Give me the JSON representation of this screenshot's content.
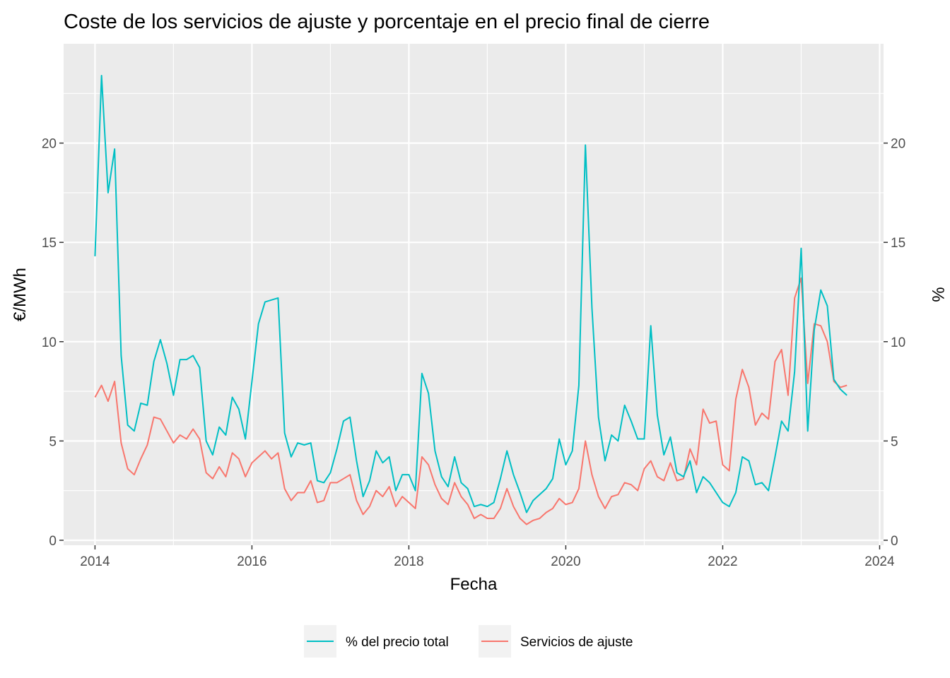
{
  "chart_data": {
    "type": "line",
    "title": "Coste de los servicios de ajuste y porcentaje en el precio final de cierre",
    "xlabel": "Fecha",
    "ylabel": "€/MWh",
    "ylabel_right": "%",
    "xlim": [
      2013.6,
      2024.05
    ],
    "ylim": [
      -0.25,
      25
    ],
    "x_ticks": [
      2014,
      2016,
      2018,
      2020,
      2022,
      2024
    ],
    "y_ticks": [
      0,
      5,
      10,
      15,
      20
    ],
    "x_tick_labels": [
      "2014",
      "2016",
      "2018",
      "2020",
      "2022",
      "2024"
    ],
    "y_tick_labels": [
      "0",
      "5",
      "10",
      "15",
      "20"
    ],
    "y_right_tick_labels": [
      "0",
      "5",
      "10",
      "15",
      "20"
    ],
    "grid": true,
    "legend": "bottom",
    "x_start": 2014.0,
    "x_step_months": 1,
    "series": [
      {
        "name": "% del precio total",
        "color": "#00BFC4",
        "values": [
          14.3,
          23.4,
          17.5,
          19.7,
          9.3,
          5.8,
          5.5,
          6.9,
          6.8,
          9.0,
          10.1,
          8.9,
          7.3,
          9.1,
          9.1,
          9.3,
          8.7,
          5.0,
          4.3,
          5.7,
          5.3,
          7.2,
          6.6,
          5.1,
          8.0,
          10.9,
          12.0,
          12.1,
          12.2,
          5.4,
          4.2,
          4.9,
          4.8,
          4.9,
          3.0,
          2.9,
          3.4,
          4.6,
          6.0,
          6.2,
          4.0,
          2.2,
          3.0,
          4.5,
          3.9,
          4.2,
          2.5,
          3.3,
          3.3,
          2.5,
          8.4,
          7.4,
          4.5,
          3.2,
          2.7,
          4.2,
          2.9,
          2.6,
          1.7,
          1.8,
          1.7,
          1.9,
          3.1,
          4.5,
          3.3,
          2.4,
          1.4,
          2.0,
          2.3,
          2.6,
          3.1,
          5.1,
          3.8,
          4.5,
          7.8,
          19.9,
          11.7,
          6.2,
          4.0,
          5.3,
          5.0,
          6.8,
          6.0,
          5.1,
          5.1,
          10.8,
          6.3,
          4.3,
          5.2,
          3.4,
          3.2,
          4.0,
          2.4,
          3.2,
          2.9,
          2.4,
          1.9,
          1.7,
          2.4,
          4.2,
          4.0,
          2.8,
          2.9,
          2.5,
          4.2,
          6.0,
          5.5,
          8.5,
          14.7,
          5.5,
          10.6,
          12.6,
          11.8,
          8.1,
          7.6,
          7.3
        ]
      },
      {
        "name": "Servicios de ajuste",
        "color": "#F8766D",
        "values": [
          7.2,
          7.8,
          7.0,
          8.0,
          4.9,
          3.6,
          3.3,
          4.1,
          4.8,
          6.2,
          6.1,
          5.5,
          4.9,
          5.3,
          5.1,
          5.6,
          5.1,
          3.4,
          3.1,
          3.7,
          3.2,
          4.4,
          4.1,
          3.2,
          3.9,
          4.2,
          4.5,
          4.1,
          4.4,
          2.6,
          2.0,
          2.4,
          2.4,
          3.0,
          1.9,
          2.0,
          2.9,
          2.9,
          3.1,
          3.3,
          2.0,
          1.3,
          1.7,
          2.5,
          2.2,
          2.7,
          1.7,
          2.2,
          1.9,
          1.6,
          4.2,
          3.8,
          2.8,
          2.1,
          1.8,
          2.9,
          2.2,
          1.8,
          1.1,
          1.3,
          1.1,
          1.1,
          1.6,
          2.6,
          1.7,
          1.1,
          0.8,
          1.0,
          1.1,
          1.4,
          1.6,
          2.1,
          1.8,
          1.9,
          2.6,
          5.0,
          3.3,
          2.2,
          1.6,
          2.2,
          2.3,
          2.9,
          2.8,
          2.5,
          3.6,
          4.0,
          3.2,
          3.0,
          3.9,
          3.0,
          3.1,
          4.6,
          3.8,
          6.6,
          5.9,
          6.0,
          3.8,
          3.5,
          7.1,
          8.6,
          7.7,
          5.8,
          6.4,
          6.1,
          9.0,
          9.6,
          7.3,
          12.2,
          13.2,
          7.9,
          10.9,
          10.8,
          10.0,
          8.0,
          7.7,
          7.8
        ]
      }
    ]
  }
}
